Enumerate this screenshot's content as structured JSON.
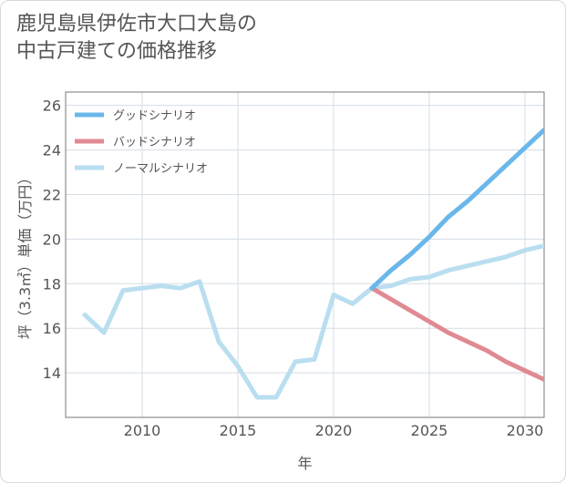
{
  "title_lines": [
    "鹿児島県伊佐市大口大島の",
    "中古戸建ての価格推移"
  ],
  "chart_data": {
    "type": "line",
    "xlabel": "年",
    "ylabel": "坪（3.3㎡）単価（万円）",
    "xlim": [
      2006,
      2031
    ],
    "ylim": [
      12,
      26.6
    ],
    "xticks": [
      2010,
      2015,
      2020,
      2025,
      2030
    ],
    "yticks": [
      14,
      16,
      18,
      20,
      22,
      24,
      26
    ],
    "grid": true,
    "legend_position": "top-left",
    "series": [
      {
        "name": "グッドシナリオ",
        "color": "#6ab7ea",
        "x": [
          2022,
          2023,
          2024,
          2025,
          2026,
          2027,
          2028,
          2029,
          2030,
          2031
        ],
        "y": [
          17.8,
          18.6,
          19.3,
          20.1,
          21.0,
          21.7,
          22.5,
          23.3,
          24.1,
          24.9
        ]
      },
      {
        "name": "バッドシナリオ",
        "color": "#e08a93",
        "x": [
          2022,
          2023,
          2024,
          2025,
          2026,
          2027,
          2028,
          2029,
          2030,
          2031
        ],
        "y": [
          17.8,
          17.3,
          16.8,
          16.3,
          15.8,
          15.4,
          15.0,
          14.5,
          14.1,
          13.7
        ]
      },
      {
        "name": "ノーマルシナリオ",
        "color": "#b9def0",
        "x": [
          2007,
          2008,
          2009,
          2010,
          2011,
          2012,
          2013,
          2014,
          2015,
          2016,
          2017,
          2018,
          2019,
          2020,
          2021,
          2022,
          2023,
          2024,
          2025,
          2026,
          2027,
          2028,
          2029,
          2030,
          2031
        ],
        "y": [
          16.6,
          15.8,
          17.7,
          17.8,
          17.9,
          17.8,
          18.1,
          15.4,
          14.3,
          12.9,
          12.9,
          14.5,
          14.6,
          17.5,
          17.1,
          17.8,
          17.9,
          18.2,
          18.3,
          18.6,
          18.8,
          19.0,
          19.2,
          19.5,
          19.7
        ]
      }
    ]
  }
}
